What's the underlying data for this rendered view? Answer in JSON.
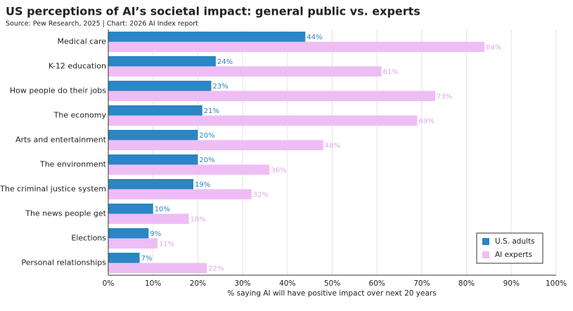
{
  "chart_data": {
    "type": "bar",
    "orientation": "horizontal",
    "title": "US perceptions of AI’s societal impact: general public vs. experts",
    "subtitle": "Source: Pew Research, 2025 | Chart: 2026 AI Index report",
    "x_label": "% saying AI will have positive impact over next 20 years",
    "categories": [
      "Medical care",
      "K-12 education",
      "How people do their jobs",
      "The economy",
      "Arts and entertainment",
      "The environment",
      "The criminal justice system",
      "The news people get",
      "Elections",
      "Personal relationships"
    ],
    "series": [
      {
        "name": "U.S. adults",
        "color": "#2a86c4",
        "values": [
          44,
          24,
          23,
          21,
          20,
          20,
          19,
          10,
          9,
          7
        ],
        "value_labels": [
          "44%",
          "24%",
          "23%",
          "21%",
          "20%",
          "20%",
          "19%",
          "10%",
          "9%",
          "7%"
        ]
      },
      {
        "name": "AI experts",
        "color": "#efbdf6",
        "values": [
          84,
          61,
          73,
          69,
          48,
          36,
          32,
          18,
          11,
          22
        ],
        "value_labels": [
          "84%",
          "61%",
          "73%",
          "69%",
          "48%",
          "36%",
          "32%",
          "18%",
          "11%",
          "22%"
        ]
      }
    ],
    "xlim": [
      0,
      100
    ],
    "xticks": [
      {
        "value": 0,
        "label": "0%"
      },
      {
        "value": 10,
        "label": "10%"
      },
      {
        "value": 20,
        "label": "20%"
      },
      {
        "value": 30,
        "label": "30%"
      },
      {
        "value": 40,
        "label": "40%"
      },
      {
        "value": 50,
        "label": "50%"
      },
      {
        "value": 60,
        "label": "60%"
      },
      {
        "value": 70,
        "label": "70%"
      },
      {
        "value": 80,
        "label": "80%"
      },
      {
        "value": 90,
        "label": "90%"
      },
      {
        "value": 100,
        "label": "100%"
      }
    ],
    "grid": true,
    "legend": "lower right"
  }
}
